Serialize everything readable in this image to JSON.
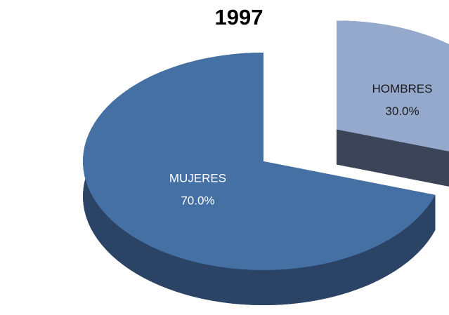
{
  "chart_data": {
    "type": "pie",
    "title": "1997",
    "categories": [
      "HOMBRES",
      "MUJERES"
    ],
    "values": [
      30,
      70
    ],
    "value_labels": [
      "30.0%",
      "70.0%"
    ],
    "colors": [
      "#94a9cc",
      "#4470a4"
    ],
    "side_colors": [
      "#3c4557",
      "#2b4466"
    ],
    "label_colors": [
      "#1a1a1a",
      "#ffffff"
    ],
    "exploded": [
      true,
      false
    ]
  }
}
